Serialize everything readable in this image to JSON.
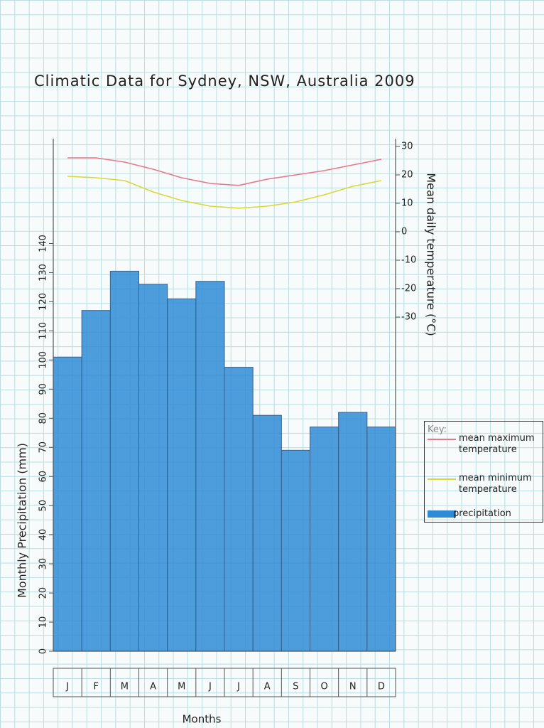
{
  "chart_data": {
    "type": "bar",
    "title": "Climatic Data for Sydney, NSW, Australia 2009",
    "x_label": "Months",
    "y_label": "Monthly Precipitation (mm)",
    "y2_label": "Mean daily temperature (°C)",
    "legend_title": "Key:",
    "legend_position": "right",
    "categories": [
      "J",
      "F",
      "M",
      "A",
      "M",
      "J",
      "J",
      "A",
      "S",
      "O",
      "N",
      "D"
    ],
    "series": [
      {
        "name": "precipitation",
        "type": "bar",
        "color": "#2f8bd6",
        "axis": "y",
        "values": [
          101,
          117,
          130.5,
          126,
          121,
          127,
          97.5,
          81,
          69,
          77,
          82,
          77
        ]
      },
      {
        "name": "mean maximum temperature",
        "type": "line",
        "color": "#e8788a",
        "axis": "y2",
        "values": [
          26,
          26,
          24.5,
          22,
          19,
          17,
          16.3,
          18.5,
          20,
          21.5,
          23.5,
          25.5
        ]
      },
      {
        "name": "mean minimum temperature",
        "type": "line",
        "color": "#d8d838",
        "axis": "y2",
        "values": [
          19.5,
          19,
          18,
          14,
          11,
          9,
          8.3,
          9,
          10.5,
          13,
          16,
          18
        ]
      }
    ],
    "ylim": [
      0,
      176
    ],
    "yticks": [
      0,
      10,
      20,
      30,
      40,
      50,
      60,
      70,
      80,
      90,
      100,
      110,
      120,
      130,
      140
    ],
    "y2lim": [
      -147.5,
      32.75
    ],
    "y2ticks": [
      30,
      20,
      10,
      0,
      -10,
      -20,
      -30
    ]
  }
}
